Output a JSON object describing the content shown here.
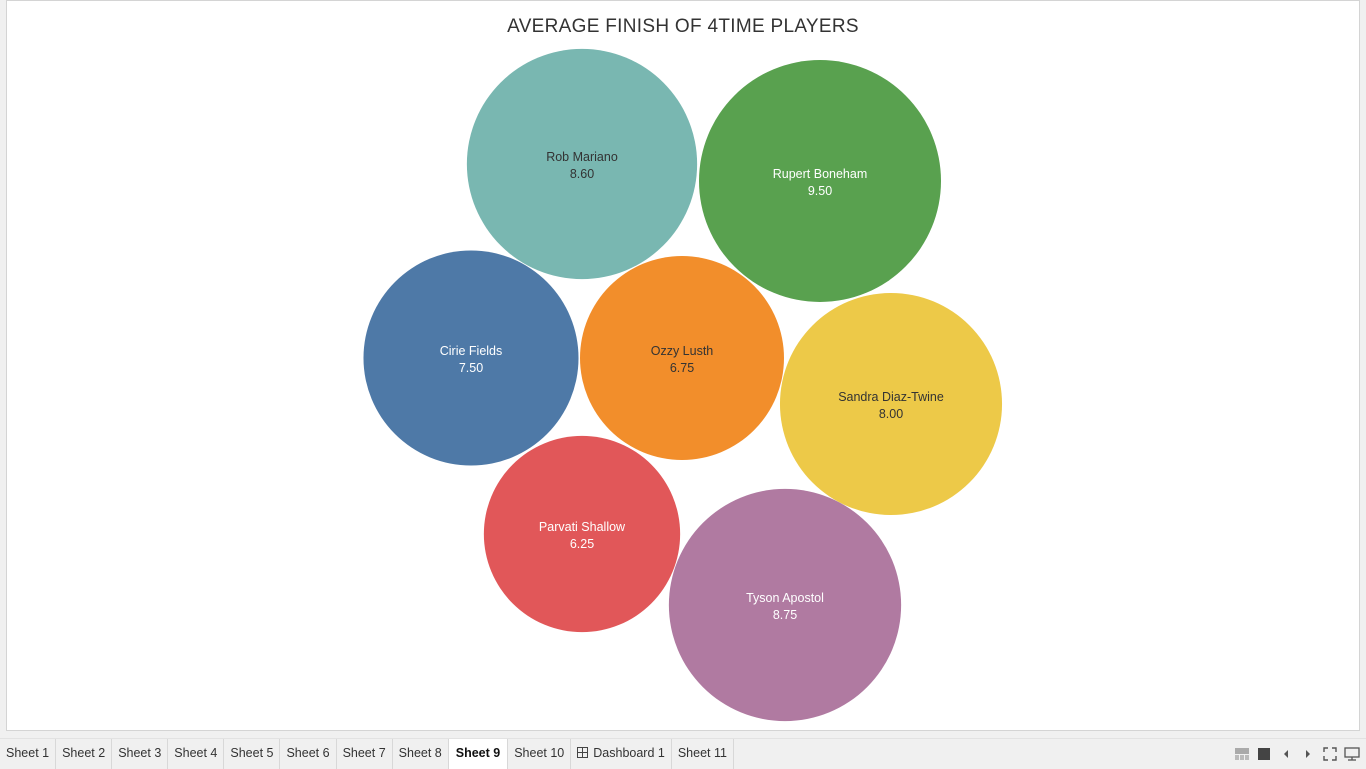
{
  "chart_data": {
    "type": "bubble",
    "title": "AVERAGE FINISH OF 4TIME PLAYERS",
    "measure": "average finish",
    "points": [
      {
        "name": "Rob Mariano",
        "label_value": "8.60",
        "value": 8.6,
        "color": "#79B7B1",
        "text_color": "#333333"
      },
      {
        "name": "Rupert Boneham",
        "label_value": "9.50",
        "value": 9.5,
        "color": "#59A14F",
        "text_color": "#ffffff"
      },
      {
        "name": "Cirie Fields",
        "label_value": "7.50",
        "value": 7.5,
        "color": "#4E79A7",
        "text_color": "#ffffff"
      },
      {
        "name": "Ozzy Lusth",
        "label_value": "6.75",
        "value": 6.75,
        "color": "#F28E2B",
        "text_color": "#333333"
      },
      {
        "name": "Sandra Diaz-Twine",
        "label_value": "8.00",
        "value": 8.0,
        "color": "#EDC948",
        "text_color": "#333333"
      },
      {
        "name": "Parvati Shallow",
        "label_value": "6.25",
        "value": 6.25,
        "color": "#E15759",
        "text_color": "#ffffff"
      },
      {
        "name": "Tyson Apostol",
        "label_value": "8.75",
        "value": 8.75,
        "color": "#B07AA1",
        "text_color": "#ffffff"
      }
    ]
  },
  "tabs": {
    "items": [
      {
        "label": "Sheet 1"
      },
      {
        "label": "Sheet 2"
      },
      {
        "label": "Sheet 3"
      },
      {
        "label": "Sheet 4"
      },
      {
        "label": "Sheet 5"
      },
      {
        "label": "Sheet 6"
      },
      {
        "label": "Sheet 7"
      },
      {
        "label": "Sheet 8"
      },
      {
        "label": "Sheet 9",
        "active": true
      },
      {
        "label": "Sheet 10"
      },
      {
        "label": "Dashboard 1",
        "icon": "dashboard-grid-icon"
      },
      {
        "label": "Sheet 11"
      }
    ]
  },
  "controls": {
    "icons": [
      "filmstrip-view-icon",
      "single-view-icon",
      "prev-sheet-icon",
      "next-sheet-icon",
      "fullscreen-icon",
      "presentation-mode-icon"
    ],
    "icon_color": "#555555"
  }
}
